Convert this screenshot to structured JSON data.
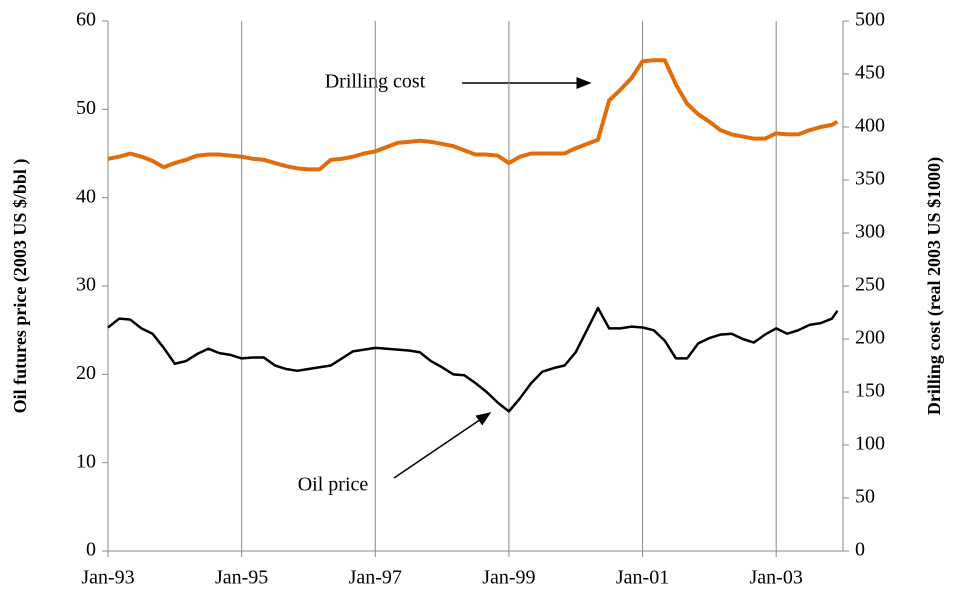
{
  "chart_data": {
    "type": "line",
    "y_label": "Oil futures price  (2003 US $/bbl )",
    "y2_label": "Drilling cost  (real 2003 US $1000)",
    "x": [
      "1993-01",
      "1993-03",
      "1993-05",
      "1993-07",
      "1993-09",
      "1993-11",
      "1994-01",
      "1994-03",
      "1994-05",
      "1994-07",
      "1994-09",
      "1994-11",
      "1995-01",
      "1995-03",
      "1995-05",
      "1995-07",
      "1995-09",
      "1995-11",
      "1996-01",
      "1996-03",
      "1996-05",
      "1996-07",
      "1996-09",
      "1996-11",
      "1997-01",
      "1997-03",
      "1997-05",
      "1997-07",
      "1997-09",
      "1997-11",
      "1998-01",
      "1998-03",
      "1998-05",
      "1998-07",
      "1998-09",
      "1998-11",
      "1999-01",
      "1999-03",
      "1999-05",
      "1999-07",
      "1999-09",
      "1999-11",
      "2000-01",
      "2000-03",
      "2000-05",
      "2000-07",
      "2000-09",
      "2000-11",
      "2001-01",
      "2001-03",
      "2001-05",
      "2001-07",
      "2001-09",
      "2001-11",
      "2002-01",
      "2002-03",
      "2002-05",
      "2002-07",
      "2002-09",
      "2002-11",
      "2003-01",
      "2003-03",
      "2003-05",
      "2003-07",
      "2003-09",
      "2003-11",
      "2003-12"
    ],
    "series": [
      {
        "name": "Oil price",
        "color": "#000000",
        "axis": "y",
        "values": [
          25.3,
          26.3,
          26.2,
          25.2,
          24.6,
          23.0,
          21.2,
          21.5,
          22.3,
          22.9,
          22.4,
          22.2,
          21.8,
          21.9,
          21.9,
          21.0,
          20.6,
          20.4,
          20.6,
          20.8,
          21.0,
          21.8,
          22.6,
          22.8,
          23.0,
          22.9,
          22.8,
          22.7,
          22.5,
          21.5,
          20.8,
          20.0,
          19.9,
          19.0,
          18.0,
          16.8,
          15.8,
          17.3,
          19.0,
          20.3,
          20.7,
          21.0,
          22.5,
          25.0,
          27.5,
          25.2,
          25.2,
          25.4,
          25.3,
          25.0,
          23.8,
          21.8,
          21.8,
          23.5,
          24.1,
          24.5,
          24.6,
          24.0,
          23.6,
          24.5,
          25.2,
          24.6,
          25.0,
          25.6,
          25.8,
          26.3,
          27.2
        ]
      },
      {
        "name": "Drilling cost",
        "color": "#e36c0a",
        "axis": "y2",
        "values": [
          370,
          372,
          375,
          372,
          368,
          362,
          366,
          369,
          373,
          374,
          374,
          373,
          372,
          370,
          369,
          366,
          363,
          361,
          360,
          360,
          369,
          370,
          372,
          375,
          377,
          381,
          385,
          386,
          387,
          386,
          384,
          382,
          378,
          374,
          374,
          373,
          366,
          372,
          375,
          375,
          375,
          375,
          380,
          384,
          388,
          425,
          435,
          446,
          462,
          463,
          463,
          440,
          422,
          412,
          405,
          397,
          393,
          391,
          389,
          389,
          394,
          393,
          393,
          397,
          400,
          402,
          405
        ]
      }
    ],
    "xlim": [
      "1993-01",
      "2004-01"
    ],
    "xticks": [
      {
        "value": "1993-01",
        "label": "Jan-93"
      },
      {
        "value": "1995-01",
        "label": "Jan-95"
      },
      {
        "value": "1997-01",
        "label": "Jan-97"
      },
      {
        "value": "1999-01",
        "label": "Jan-99"
      },
      {
        "value": "2001-01",
        "label": "Jan-01"
      },
      {
        "value": "2003-01",
        "label": "Jan-03"
      }
    ],
    "ylim": [
      0,
      60
    ],
    "yticks": [
      0,
      10,
      20,
      30,
      40,
      50,
      60
    ],
    "y2lim": [
      0,
      500
    ],
    "y2ticks": [
      0,
      50,
      100,
      150,
      200,
      250,
      300,
      350,
      400,
      450,
      500
    ],
    "grid": "x"
  }
}
